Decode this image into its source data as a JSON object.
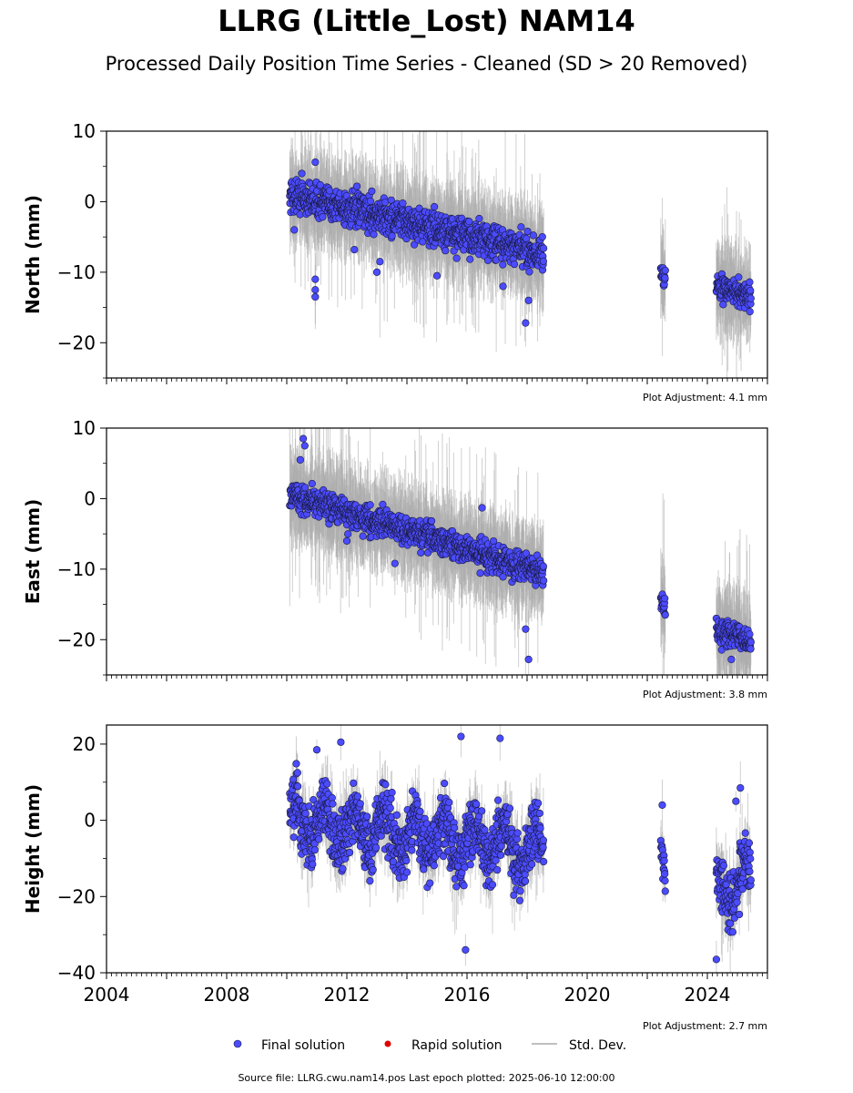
{
  "title": "LLRG (Little_Lost) NAM14",
  "subtitle": "Processed Daily Position Time Series - Cleaned (SD > 20 Removed)",
  "colors": {
    "final": "#4b4bff",
    "rapid": "#e00000",
    "stddev": "#aaaaaa"
  },
  "legend": {
    "final": "Final solution",
    "rapid": "Rapid solution",
    "stddev": "Std. Dev."
  },
  "footer": "Source file: LLRG.cwu.nam14.pos  Last epoch plotted: 2025-06-10 12:00:00",
  "chart_data": [
    {
      "type": "scatter",
      "ylabel": "North (mm)",
      "ylim": [
        -25,
        10
      ],
      "yticks": [
        10,
        0,
        -10,
        -20
      ],
      "xlim": [
        2004,
        2026
      ],
      "adjustment": "Plot Adjustment: 4.1 mm",
      "series": [
        {
          "name": "Final solution",
          "segments": [
            {
              "x": [
                2010.1,
                2018.55
              ],
              "y": [
                1.0,
                -7.5
              ],
              "spread": 2.0
            },
            {
              "x": [
                2022.45,
                2022.6
              ],
              "y": [
                -9.5,
                -11.0
              ],
              "spread": 1.2
            },
            {
              "x": [
                2024.3,
                2025.45
              ],
              "y": [
                -12.0,
                -13.5
              ],
              "spread": 1.5
            }
          ]
        }
      ],
      "outliers": [
        [
          2010.95,
          5.6
        ],
        [
          2010.5,
          4.0
        ],
        [
          2010.95,
          -11.0
        ],
        [
          2010.95,
          -12.5
        ],
        [
          2010.95,
          -13.5
        ],
        [
          2012.25,
          -6.8
        ],
        [
          2013.0,
          -10.0
        ],
        [
          2013.1,
          -8.5
        ],
        [
          2015.0,
          -10.5
        ],
        [
          2017.2,
          -12.0
        ],
        [
          2017.95,
          -17.2
        ],
        [
          2018.05,
          -14.0
        ],
        [
          2010.25,
          -4.0
        ]
      ]
    },
    {
      "type": "scatter",
      "ylabel": "East (mm)",
      "ylim": [
        -25,
        10
      ],
      "yticks": [
        10,
        0,
        -10,
        -20
      ],
      "xlim": [
        2004,
        2026
      ],
      "adjustment": "Plot Adjustment: 3.8 mm",
      "series": [
        {
          "name": "Final solution",
          "segments": [
            {
              "x": [
                2010.1,
                2018.55
              ],
              "y": [
                0.5,
                -10.5
              ],
              "spread": 1.6
            },
            {
              "x": [
                2022.45,
                2022.6
              ],
              "y": [
                -14.0,
                -15.5
              ],
              "spread": 1.0
            },
            {
              "x": [
                2024.3,
                2025.45
              ],
              "y": [
                -18.5,
                -20.5
              ],
              "spread": 1.6
            }
          ]
        }
      ],
      "outliers": [
        [
          2010.55,
          8.5
        ],
        [
          2010.6,
          7.5
        ],
        [
          2010.45,
          5.5
        ],
        [
          2016.5,
          -1.3
        ],
        [
          2013.6,
          -9.2
        ],
        [
          2017.95,
          -18.5
        ],
        [
          2018.05,
          -22.8
        ],
        [
          2024.8,
          -22.8
        ],
        [
          2012.0,
          -6.0
        ]
      ]
    },
    {
      "type": "scatter",
      "ylabel": "Height (mm)",
      "ylim": [
        -40,
        25
      ],
      "yticks": [
        20,
        0,
        -20,
        -40
      ],
      "xlim": [
        2004,
        2026
      ],
      "xticks": [
        2004,
        2008,
        2012,
        2016,
        2020,
        2024
      ],
      "adjustment": "Plot Adjustment: 2.7 mm",
      "series": [
        {
          "name": "Final solution",
          "segments": [
            {
              "x": [
                2010.1,
                2018.55
              ],
              "y": [
                0.0,
                -8.0
              ],
              "spread": 6.5
            },
            {
              "x": [
                2022.45,
                2022.6
              ],
              "y": [
                -6.0,
                -14.0
              ],
              "spread": 4.0
            },
            {
              "x": [
                2024.3,
                2025.45
              ],
              "y": [
                -18.0,
                -15.0
              ],
              "spread": 6.0
            }
          ]
        }
      ],
      "outliers": [
        [
          2015.8,
          22.0
        ],
        [
          2017.1,
          21.5
        ],
        [
          2011.8,
          20.5
        ],
        [
          2015.95,
          -34.0
        ],
        [
          2024.3,
          -36.5
        ],
        [
          2022.5,
          4.0
        ],
        [
          2025.1,
          8.5
        ],
        [
          2024.95,
          5.0
        ],
        [
          2011.0,
          18.5
        ]
      ]
    }
  ]
}
